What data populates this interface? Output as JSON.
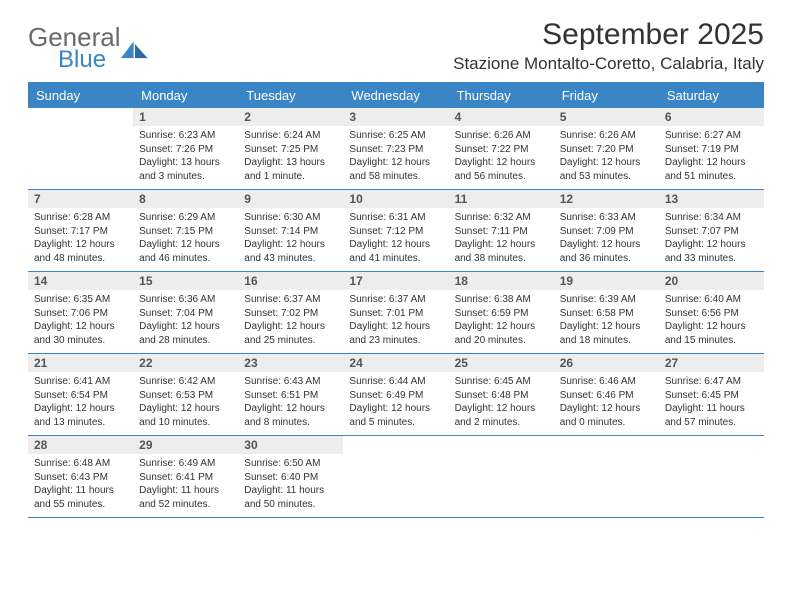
{
  "brand": {
    "text1": "General",
    "text2": "Blue",
    "gray": "#6a6a6a",
    "blue": "#3a85c6"
  },
  "title": "September 2025",
  "location": "Stazione Montalto-Coretto, Calabria, Italy",
  "theme": {
    "header_bg": "#3a85c6",
    "header_text": "#ffffff",
    "daynum_bg": "#ededed",
    "rule_color": "#3a85c6",
    "page_bg": "#ffffff",
    "body_text": "#333333"
  },
  "calendar": {
    "type": "table",
    "columns": [
      "Sunday",
      "Monday",
      "Tuesday",
      "Wednesday",
      "Thursday",
      "Friday",
      "Saturday"
    ],
    "col_count": 7,
    "header_fontsize": 13,
    "daynum_fontsize": 12,
    "body_fontsize": 10,
    "weeks": [
      [
        {
          "n": "",
          "sr": "",
          "ss": "",
          "d1": "",
          "d2": "",
          "empty": true
        },
        {
          "n": "1",
          "sr": "Sunrise: 6:23 AM",
          "ss": "Sunset: 7:26 PM",
          "d1": "Daylight: 13 hours",
          "d2": "and 3 minutes."
        },
        {
          "n": "2",
          "sr": "Sunrise: 6:24 AM",
          "ss": "Sunset: 7:25 PM",
          "d1": "Daylight: 13 hours",
          "d2": "and 1 minute."
        },
        {
          "n": "3",
          "sr": "Sunrise: 6:25 AM",
          "ss": "Sunset: 7:23 PM",
          "d1": "Daylight: 12 hours",
          "d2": "and 58 minutes."
        },
        {
          "n": "4",
          "sr": "Sunrise: 6:26 AM",
          "ss": "Sunset: 7:22 PM",
          "d1": "Daylight: 12 hours",
          "d2": "and 56 minutes."
        },
        {
          "n": "5",
          "sr": "Sunrise: 6:26 AM",
          "ss": "Sunset: 7:20 PM",
          "d1": "Daylight: 12 hours",
          "d2": "and 53 minutes."
        },
        {
          "n": "6",
          "sr": "Sunrise: 6:27 AM",
          "ss": "Sunset: 7:19 PM",
          "d1": "Daylight: 12 hours",
          "d2": "and 51 minutes."
        }
      ],
      [
        {
          "n": "7",
          "sr": "Sunrise: 6:28 AM",
          "ss": "Sunset: 7:17 PM",
          "d1": "Daylight: 12 hours",
          "d2": "and 48 minutes."
        },
        {
          "n": "8",
          "sr": "Sunrise: 6:29 AM",
          "ss": "Sunset: 7:15 PM",
          "d1": "Daylight: 12 hours",
          "d2": "and 46 minutes."
        },
        {
          "n": "9",
          "sr": "Sunrise: 6:30 AM",
          "ss": "Sunset: 7:14 PM",
          "d1": "Daylight: 12 hours",
          "d2": "and 43 minutes."
        },
        {
          "n": "10",
          "sr": "Sunrise: 6:31 AM",
          "ss": "Sunset: 7:12 PM",
          "d1": "Daylight: 12 hours",
          "d2": "and 41 minutes."
        },
        {
          "n": "11",
          "sr": "Sunrise: 6:32 AM",
          "ss": "Sunset: 7:11 PM",
          "d1": "Daylight: 12 hours",
          "d2": "and 38 minutes."
        },
        {
          "n": "12",
          "sr": "Sunrise: 6:33 AM",
          "ss": "Sunset: 7:09 PM",
          "d1": "Daylight: 12 hours",
          "d2": "and 36 minutes."
        },
        {
          "n": "13",
          "sr": "Sunrise: 6:34 AM",
          "ss": "Sunset: 7:07 PM",
          "d1": "Daylight: 12 hours",
          "d2": "and 33 minutes."
        }
      ],
      [
        {
          "n": "14",
          "sr": "Sunrise: 6:35 AM",
          "ss": "Sunset: 7:06 PM",
          "d1": "Daylight: 12 hours",
          "d2": "and 30 minutes."
        },
        {
          "n": "15",
          "sr": "Sunrise: 6:36 AM",
          "ss": "Sunset: 7:04 PM",
          "d1": "Daylight: 12 hours",
          "d2": "and 28 minutes."
        },
        {
          "n": "16",
          "sr": "Sunrise: 6:37 AM",
          "ss": "Sunset: 7:02 PM",
          "d1": "Daylight: 12 hours",
          "d2": "and 25 minutes."
        },
        {
          "n": "17",
          "sr": "Sunrise: 6:37 AM",
          "ss": "Sunset: 7:01 PM",
          "d1": "Daylight: 12 hours",
          "d2": "and 23 minutes."
        },
        {
          "n": "18",
          "sr": "Sunrise: 6:38 AM",
          "ss": "Sunset: 6:59 PM",
          "d1": "Daylight: 12 hours",
          "d2": "and 20 minutes."
        },
        {
          "n": "19",
          "sr": "Sunrise: 6:39 AM",
          "ss": "Sunset: 6:58 PM",
          "d1": "Daylight: 12 hours",
          "d2": "and 18 minutes."
        },
        {
          "n": "20",
          "sr": "Sunrise: 6:40 AM",
          "ss": "Sunset: 6:56 PM",
          "d1": "Daylight: 12 hours",
          "d2": "and 15 minutes."
        }
      ],
      [
        {
          "n": "21",
          "sr": "Sunrise: 6:41 AM",
          "ss": "Sunset: 6:54 PM",
          "d1": "Daylight: 12 hours",
          "d2": "and 13 minutes."
        },
        {
          "n": "22",
          "sr": "Sunrise: 6:42 AM",
          "ss": "Sunset: 6:53 PM",
          "d1": "Daylight: 12 hours",
          "d2": "and 10 minutes."
        },
        {
          "n": "23",
          "sr": "Sunrise: 6:43 AM",
          "ss": "Sunset: 6:51 PM",
          "d1": "Daylight: 12 hours",
          "d2": "and 8 minutes."
        },
        {
          "n": "24",
          "sr": "Sunrise: 6:44 AM",
          "ss": "Sunset: 6:49 PM",
          "d1": "Daylight: 12 hours",
          "d2": "and 5 minutes."
        },
        {
          "n": "25",
          "sr": "Sunrise: 6:45 AM",
          "ss": "Sunset: 6:48 PM",
          "d1": "Daylight: 12 hours",
          "d2": "and 2 minutes."
        },
        {
          "n": "26",
          "sr": "Sunrise: 6:46 AM",
          "ss": "Sunset: 6:46 PM",
          "d1": "Daylight: 12 hours",
          "d2": "and 0 minutes."
        },
        {
          "n": "27",
          "sr": "Sunrise: 6:47 AM",
          "ss": "Sunset: 6:45 PM",
          "d1": "Daylight: 11 hours",
          "d2": "and 57 minutes."
        }
      ],
      [
        {
          "n": "28",
          "sr": "Sunrise: 6:48 AM",
          "ss": "Sunset: 6:43 PM",
          "d1": "Daylight: 11 hours",
          "d2": "and 55 minutes."
        },
        {
          "n": "29",
          "sr": "Sunrise: 6:49 AM",
          "ss": "Sunset: 6:41 PM",
          "d1": "Daylight: 11 hours",
          "d2": "and 52 minutes."
        },
        {
          "n": "30",
          "sr": "Sunrise: 6:50 AM",
          "ss": "Sunset: 6:40 PM",
          "d1": "Daylight: 11 hours",
          "d2": "and 50 minutes."
        },
        {
          "n": "",
          "sr": "",
          "ss": "",
          "d1": "",
          "d2": "",
          "empty": true
        },
        {
          "n": "",
          "sr": "",
          "ss": "",
          "d1": "",
          "d2": "",
          "empty": true
        },
        {
          "n": "",
          "sr": "",
          "ss": "",
          "d1": "",
          "d2": "",
          "empty": true
        },
        {
          "n": "",
          "sr": "",
          "ss": "",
          "d1": "",
          "d2": "",
          "empty": true
        }
      ]
    ]
  }
}
